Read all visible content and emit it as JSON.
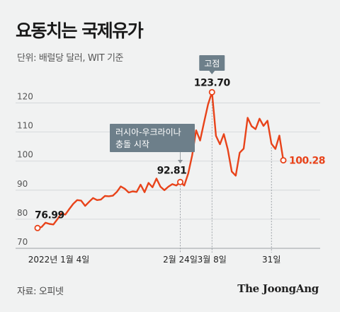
{
  "title": "요동치는 국제유가",
  "subtitle": "단위: 배럴당 달러, WIT 기준",
  "source": "자료: 오피넷",
  "brand": "The JoongAng",
  "colors": {
    "line": "#e8431a",
    "annotation_box": "#6d7f8a",
    "grid": "#cfd3d6",
    "axis": "#555555"
  },
  "chart_data": {
    "type": "line",
    "title": "요동치는 국제유가",
    "ylabel": "단위: 배럴당 달러, WIT 기준",
    "ylim": [
      70,
      125
    ],
    "yticks": [
      70,
      80,
      90,
      100,
      110,
      120
    ],
    "x_tick_labels": [
      {
        "label": "2022년 1월 4일",
        "index": 0
      },
      {
        "label": "2월 24일",
        "index": 36
      },
      {
        "label": "3월 8일",
        "index": 44
      },
      {
        "label": "31일",
        "index": 59
      }
    ],
    "series": [
      {
        "values": [
          76.99,
          77.3,
          78.8,
          78.4,
          78.2,
          80.0,
          82.0,
          81.6,
          83.5,
          85.3,
          86.6,
          86.4,
          84.6,
          86.0,
          87.3,
          86.6,
          86.8,
          88.0,
          87.9,
          88.1,
          89.4,
          91.3,
          90.5,
          89.2,
          89.6,
          89.4,
          91.9,
          89.3,
          92.5,
          91.0,
          94.0,
          91.2,
          90.0,
          91.2,
          92.1,
          91.6,
          92.81,
          91.6,
          95.7,
          102.0,
          110.6,
          107.1,
          113.4,
          119.5,
          123.7,
          108.7,
          105.8,
          109.3,
          104.0,
          96.4,
          95.0,
          102.9,
          104.3,
          114.9,
          112.0,
          111.0,
          114.6,
          112.1,
          113.9,
          106.0,
          104.2,
          108.8,
          100.28
        ]
      }
    ],
    "data_labels": [
      {
        "index": 0,
        "text": "76.99"
      },
      {
        "index": 36,
        "text": "92.81"
      },
      {
        "index": 44,
        "text": "123.70"
      },
      {
        "index": 62,
        "text": "100.28"
      }
    ],
    "annotations": [
      {
        "text": "고점",
        "index": 44
      },
      {
        "text": "러시아-우크라이나 충돌 시작",
        "index": 36
      }
    ],
    "grid": true
  }
}
